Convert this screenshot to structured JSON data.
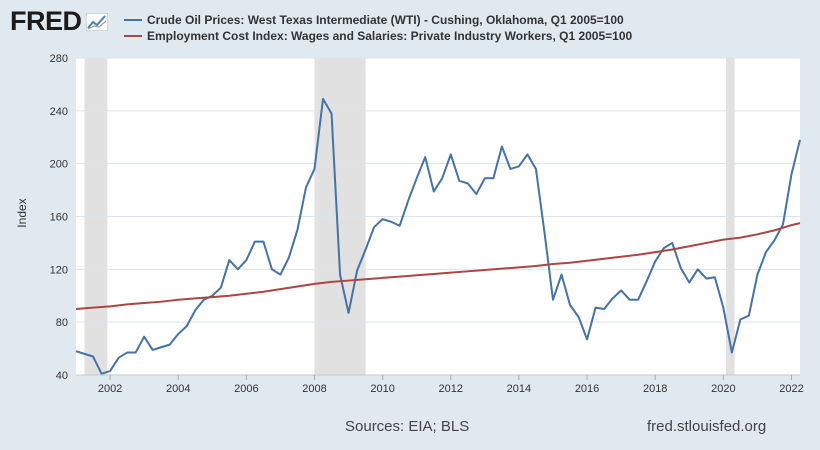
{
  "logo": {
    "text": "FRED",
    "icon": "chart-line-icon"
  },
  "legend": [
    {
      "label": "Crude Oil Prices: West Texas Intermediate (WTI) - Cushing, Oklahoma, Q1 2005=100",
      "color": "#4572a7"
    },
    {
      "label": "Employment Cost Index: Wages and Salaries: Private Industry Workers, Q1 2005=100",
      "color": "#aa4643"
    }
  ],
  "footer": {
    "sources": "Sources: EIA; BLS",
    "site": "fred.stlouisfed.org"
  },
  "colors": {
    "background": "#e1e9f0",
    "plot_bg": "#ffffff",
    "recession": "#e1e1e1",
    "grid": "#dde4ea"
  },
  "chart_data": {
    "type": "line",
    "ylabel": "Index",
    "xlabel": "",
    "xlim": [
      2001.0,
      2022.25
    ],
    "ylim": [
      40,
      280
    ],
    "yticks": [
      "40",
      "80",
      "120",
      "160",
      "200",
      "240",
      "280"
    ],
    "xticks": [
      "2002",
      "2004",
      "2006",
      "2008",
      "2010",
      "2012",
      "2014",
      "2016",
      "2018",
      "2020",
      "2022"
    ],
    "grid": "horizontal",
    "recessions": [
      [
        2001.25,
        2001.92
      ],
      [
        2008.0,
        2009.5
      ],
      [
        2020.08,
        2020.33
      ]
    ],
    "series": [
      {
        "name": "Crude Oil Prices: West Texas Intermediate (WTI) - Cushing, Oklahoma, Q1 2005=100",
        "color": "#4572a7",
        "x": [
          2001.0,
          2001.25,
          2001.5,
          2001.75,
          2002.0,
          2002.25,
          2002.5,
          2002.75,
          2003.0,
          2003.25,
          2003.5,
          2003.75,
          2004.0,
          2004.25,
          2004.5,
          2004.75,
          2005.0,
          2005.25,
          2005.5,
          2005.75,
          2006.0,
          2006.25,
          2006.5,
          2006.75,
          2007.0,
          2007.25,
          2007.5,
          2007.75,
          2008.0,
          2008.25,
          2008.5,
          2008.75,
          2009.0,
          2009.25,
          2009.5,
          2009.75,
          2010.0,
          2010.25,
          2010.5,
          2010.75,
          2011.0,
          2011.25,
          2011.5,
          2011.75,
          2012.0,
          2012.25,
          2012.5,
          2012.75,
          2013.0,
          2013.25,
          2013.5,
          2013.75,
          2014.0,
          2014.25,
          2014.5,
          2014.75,
          2015.0,
          2015.25,
          2015.5,
          2015.75,
          2016.0,
          2016.25,
          2016.5,
          2016.75,
          2017.0,
          2017.25,
          2017.5,
          2017.75,
          2018.0,
          2018.25,
          2018.5,
          2018.75,
          2019.0,
          2019.25,
          2019.5,
          2019.75,
          2020.0,
          2020.25,
          2020.5,
          2020.75,
          2021.0,
          2021.25,
          2021.5,
          2021.75,
          2022.0,
          2022.25
        ],
        "values": [
          58,
          56,
          54,
          41,
          43,
          53,
          57,
          57,
          69,
          59,
          61,
          63,
          71,
          77,
          89,
          97,
          100,
          106,
          127,
          120,
          127,
          141,
          141,
          120,
          116,
          129,
          150,
          182,
          196,
          249,
          238,
          116,
          87,
          119,
          135,
          152,
          158,
          156,
          153,
          172,
          189,
          205,
          179,
          189,
          207,
          187,
          185,
          177,
          189,
          189,
          213,
          196,
          198,
          207,
          196,
          148,
          97,
          116,
          93,
          84,
          67,
          91,
          90,
          98,
          104,
          97,
          97,
          111,
          126,
          136,
          140,
          121,
          110,
          120,
          113,
          114,
          91,
          57,
          82,
          85,
          116,
          133,
          142,
          154,
          192,
          218
        ]
      },
      {
        "name": "Employment Cost Index: Wages and Salaries: Private Industry Workers, Q1 2005=100",
        "color": "#aa4643",
        "x": [
          2001.0,
          2001.5,
          2002.0,
          2002.5,
          2003.0,
          2003.5,
          2004.0,
          2004.5,
          2005.0,
          2005.5,
          2006.0,
          2006.5,
          2007.0,
          2007.5,
          2008.0,
          2008.5,
          2009.0,
          2009.5,
          2010.0,
          2010.5,
          2011.0,
          2011.5,
          2012.0,
          2012.5,
          2013.0,
          2013.5,
          2014.0,
          2014.5,
          2015.0,
          2015.5,
          2016.0,
          2016.5,
          2017.0,
          2017.5,
          2018.0,
          2018.5,
          2019.0,
          2019.5,
          2020.0,
          2020.5,
          2021.0,
          2021.5,
          2022.0,
          2022.25
        ],
        "values": [
          90,
          91,
          92,
          93.5,
          94.5,
          95.5,
          97,
          98,
          99,
          100,
          101.5,
          103,
          105,
          107,
          109,
          110.5,
          111.5,
          112.5,
          113.5,
          114.5,
          115.5,
          116.5,
          117.5,
          118.5,
          119.5,
          120.5,
          121.5,
          122.5,
          124,
          125,
          126.5,
          128,
          129.5,
          131,
          133,
          135,
          137.5,
          140,
          142.5,
          144,
          146.5,
          149.5,
          153.5,
          155
        ]
      }
    ]
  }
}
